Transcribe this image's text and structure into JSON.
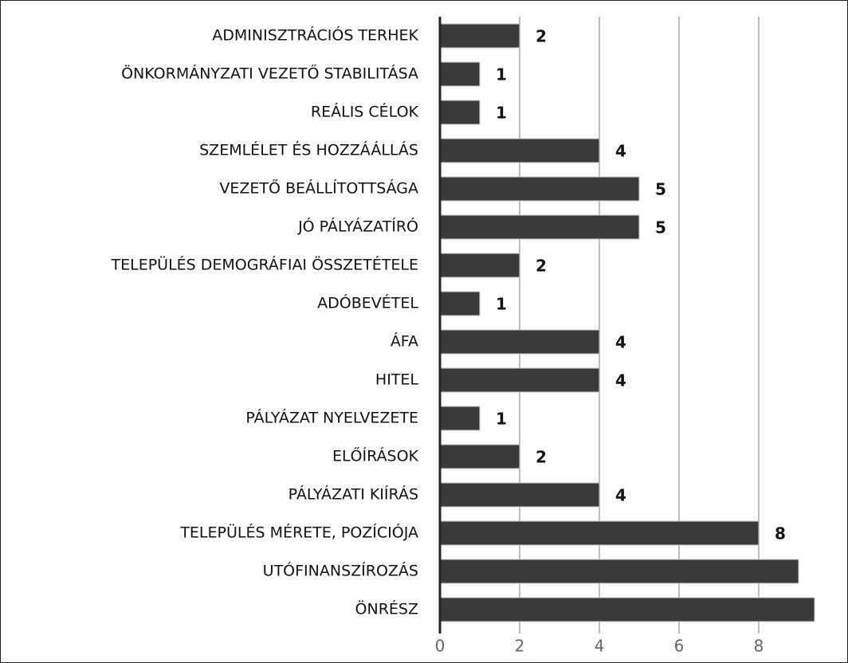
{
  "chart_data": {
    "type": "bar",
    "orientation": "horizontal",
    "categories": [
      "ADMINISZTRÁCIÓS TERHEK",
      "ÖNKORMÁNYZATI VEZETŐ STABILITÁSA",
      "REÁLIS CÉLOK",
      "SZEMLÉLET ÉS HOZZÁÁLLÁS",
      "VEZETŐ BEÁLLÍTOTTSÁGA",
      "JÓ PÁLYÁZATÍRÓ",
      "TELEPÜLÉS DEMOGRÁFIAI ÖSSZETÉTELE",
      "ADÓBEVÉTEL",
      "ÁFA",
      "HITEL",
      "PÁLYÁZAT NYELVEZETE",
      "ELŐÍRÁSOK",
      "PÁLYÁZATI KIÍRÁS",
      "TELEPÜLÉS MÉRETE, POZÍCIÓJA",
      "UTÓFINANSZÍROZÁS",
      "ÖNRÉSZ"
    ],
    "values": [
      2,
      1,
      1,
      4,
      5,
      5,
      2,
      1,
      4,
      4,
      1,
      2,
      4,
      8,
      9,
      9.4
    ],
    "value_labels": [
      "2",
      "1",
      "1",
      "4",
      "5",
      "5",
      "2",
      "1",
      "4",
      "4",
      "1",
      "2",
      "4",
      "8",
      null,
      null
    ],
    "color": "#3a3a3a",
    "xlim": [
      0,
      9.8
    ],
    "xticks": [
      0,
      2,
      4,
      6,
      8
    ],
    "grid": true
  }
}
